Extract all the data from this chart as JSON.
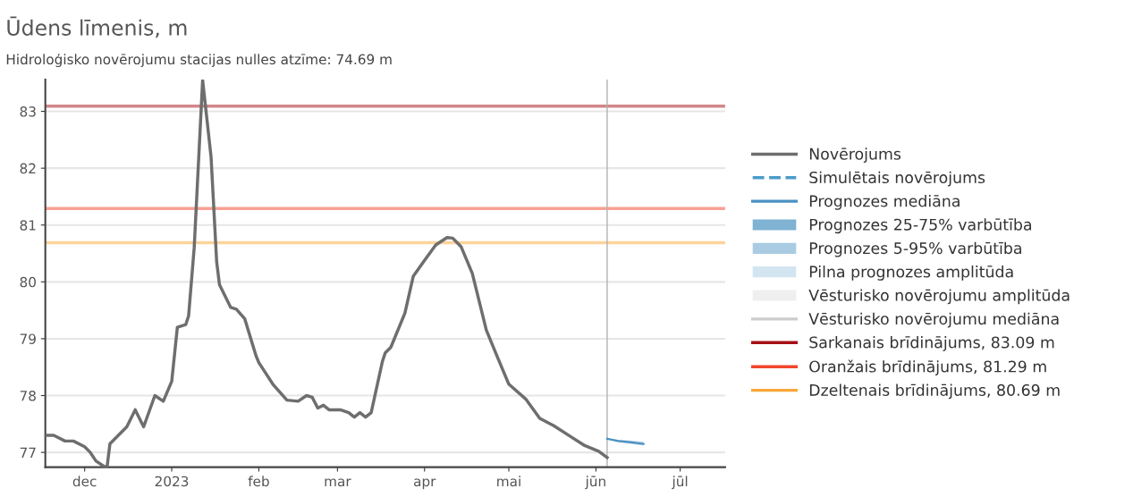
{
  "chart_data": {
    "type": "line",
    "title": "Ūdens līmenis, m",
    "subtitle": "Hidroloģisko novērojumu stacijas nulles atzīme: 74.69 m",
    "xlim": [
      "2022-11-17",
      "2023-07-17"
    ],
    "xticks": [
      {
        "value": "2022-12-01",
        "label": "dec"
      },
      {
        "value": "2023-01-01",
        "label": "2023"
      },
      {
        "value": "2023-02-01",
        "label": "feb"
      },
      {
        "value": "2023-03-01",
        "label": "mar"
      },
      {
        "value": "2023-04-01",
        "label": "apr"
      },
      {
        "value": "2023-05-01",
        "label": "mai"
      },
      {
        "value": "2023-06-01",
        "label": "jūn"
      },
      {
        "value": "2023-07-01",
        "label": "jūl"
      }
    ],
    "ylim": [
      76.74,
      83.56
    ],
    "yticks": [
      77,
      78,
      79,
      80,
      81,
      82,
      83
    ],
    "grid": "y",
    "legend": "right",
    "series": [
      {
        "name": "Novērojums",
        "color": "#6e6e6e",
        "x": [
          "2022-11-17",
          "2022-11-20",
          "2022-11-24",
          "2022-11-27",
          "2022-12-01",
          "2022-12-03",
          "2022-12-05",
          "2022-12-08",
          "2022-12-09",
          "2022-12-10",
          "2022-12-13",
          "2022-12-16",
          "2022-12-19",
          "2022-12-22",
          "2022-12-26",
          "2022-12-29",
          "2023-01-01",
          "2023-01-03",
          "2023-01-06",
          "2023-01-07",
          "2023-01-09",
          "2023-01-12",
          "2023-01-15",
          "2023-01-17",
          "2023-01-18",
          "2023-01-22",
          "2023-01-24",
          "2023-01-27",
          "2023-01-31",
          "2023-02-01",
          "2023-02-06",
          "2023-02-11",
          "2023-02-15",
          "2023-02-18",
          "2023-02-20",
          "2023-02-22",
          "2023-02-24",
          "2023-02-26",
          "2023-03-02",
          "2023-03-05",
          "2023-03-07",
          "2023-03-09",
          "2023-03-11",
          "2023-03-13",
          "2023-03-17",
          "2023-03-18",
          "2023-03-20",
          "2023-03-25",
          "2023-03-28",
          "2023-04-01",
          "2023-04-05",
          "2023-04-09",
          "2023-04-11",
          "2023-04-14",
          "2023-04-18",
          "2023-04-23",
          "2023-04-27",
          "2023-05-01",
          "2023-05-07",
          "2023-05-12",
          "2023-05-17",
          "2023-05-22",
          "2023-05-28",
          "2023-06-02",
          "2023-06-05"
        ],
        "values": [
          77.3,
          77.3,
          77.2,
          77.2,
          77.1,
          77.0,
          76.85,
          76.75,
          76.75,
          77.15,
          77.3,
          77.45,
          77.75,
          77.45,
          78.0,
          77.9,
          78.25,
          79.2,
          79.25,
          79.4,
          80.6,
          83.55,
          82.2,
          80.35,
          79.95,
          79.55,
          79.52,
          79.35,
          78.7,
          78.58,
          78.2,
          77.92,
          77.9,
          78.0,
          77.97,
          77.78,
          77.83,
          77.75,
          77.75,
          77.7,
          77.62,
          77.7,
          77.62,
          77.7,
          78.6,
          78.75,
          78.85,
          79.45,
          80.1,
          80.38,
          80.65,
          80.78,
          80.77,
          80.62,
          80.15,
          79.15,
          78.67,
          78.2,
          77.94,
          77.6,
          77.47,
          77.31,
          77.12,
          77.02,
          76.91
        ]
      },
      {
        "name": "Simulētais novērojums",
        "line_style": "dashed",
        "color": "#4a9cc9"
      },
      {
        "name": "Prognozes mediāna",
        "color": "#4a90c2",
        "x": [
          "2023-06-05",
          "2023-06-09",
          "2023-06-13",
          "2023-06-18"
        ],
        "values": [
          77.24,
          77.2,
          77.18,
          77.15
        ],
        "lower": [
          77.24,
          77.18,
          77.15,
          77.12
        ],
        "upper": [
          77.24,
          77.22,
          77.21,
          77.19
        ]
      },
      {
        "name": "Prognozes 25-75% varbūtība",
        "type": "area",
        "color": "#7fb2d3"
      },
      {
        "name": "Prognozes 5-95% varbūtība",
        "type": "area",
        "color": "#a9cce3"
      },
      {
        "name": "Pilna prognozes amplitūda",
        "type": "area",
        "color": "#d3e5f1"
      },
      {
        "name": "Vēsturisko novērojumu amplitūda",
        "type": "area",
        "color": "#efefef"
      },
      {
        "name": "Vēsturisko novērojumu mediāna",
        "color": "#cccccc"
      }
    ],
    "ref_lines": [
      {
        "axis": "y",
        "value": 83.09,
        "label": "Sarkanais brīdinājums, 83.09 m",
        "color": "#a50f15"
      },
      {
        "axis": "y",
        "value": 81.29,
        "label": "Oranžais brīdinājums, 81.29 m",
        "color": "#f0452a"
      },
      {
        "axis": "y",
        "value": 80.69,
        "label": "Dzeltenais brīdinājums, 80.69 m",
        "color": "#fba73a"
      },
      {
        "axis": "x",
        "value": "2023-06-05",
        "color": "#b0b0b0"
      }
    ]
  }
}
